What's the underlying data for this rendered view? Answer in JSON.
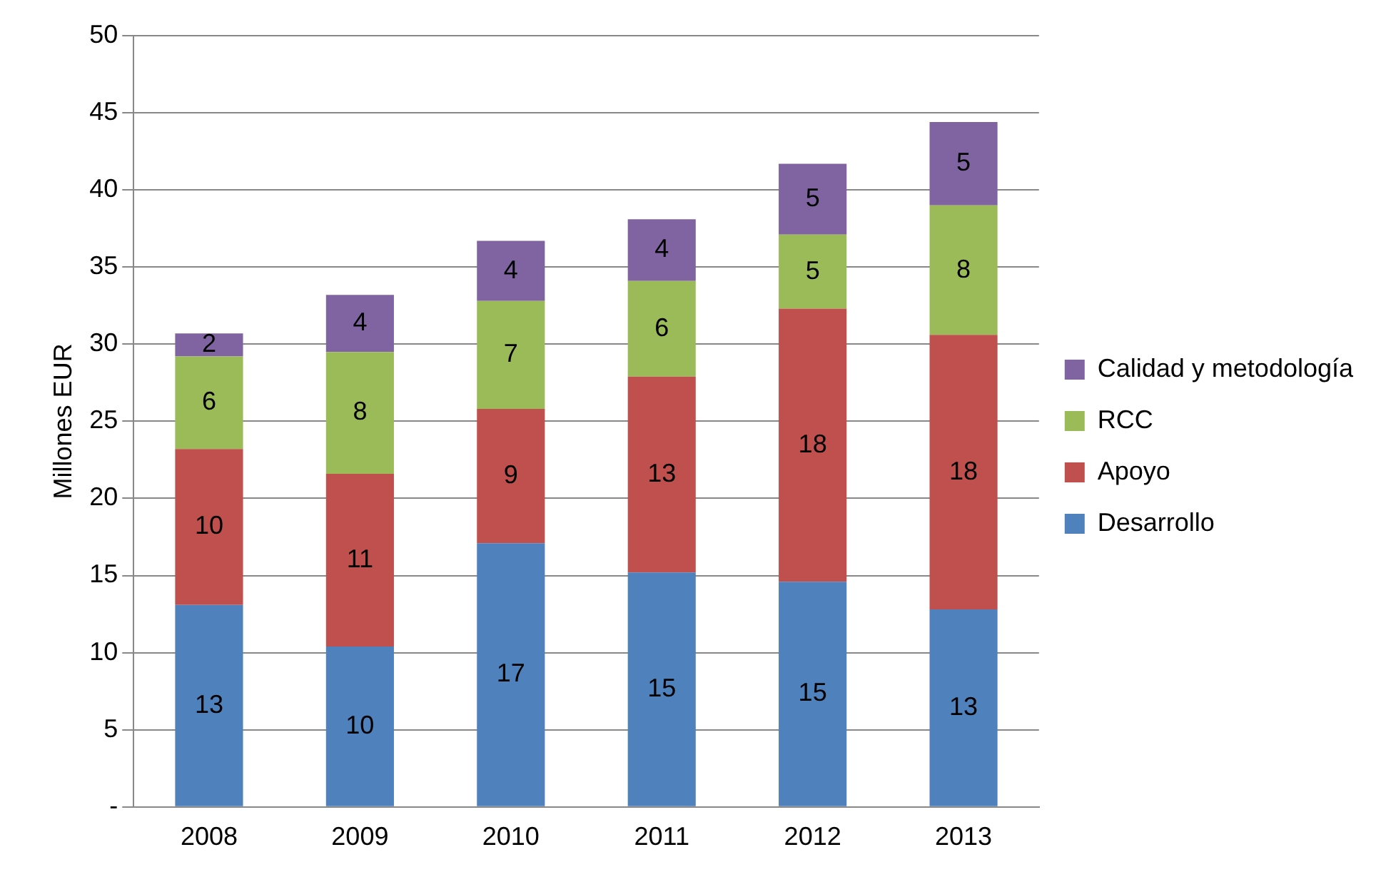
{
  "chart_data": {
    "type": "bar",
    "stacked": true,
    "ylabel": "Millones EUR",
    "categories": [
      "2008",
      "2009",
      "2010",
      "2011",
      "2012",
      "2013"
    ],
    "series": [
      {
        "name": "Desarrollo",
        "color": "#4f81bd",
        "values": [
          13.1,
          10.4,
          17.1,
          15.2,
          14.6,
          12.8
        ],
        "value_labels": [
          "13",
          "10",
          "17",
          "15",
          "15",
          "13"
        ]
      },
      {
        "name": "Apoyo",
        "color": "#c0504d",
        "values": [
          10.1,
          11.2,
          8.7,
          12.7,
          17.7,
          17.8
        ],
        "value_labels": [
          "10",
          "11",
          "9",
          "13",
          "18",
          "18"
        ]
      },
      {
        "name": "RCC",
        "color": "#9bbb59",
        "values": [
          6.0,
          7.9,
          7.0,
          6.2,
          4.8,
          8.4
        ],
        "value_labels": [
          "6",
          "8",
          "7",
          "6",
          "5",
          "8"
        ]
      },
      {
        "name": "Calidad y metodología",
        "color": "#8064a2",
        "values": [
          1.5,
          3.7,
          3.9,
          4.0,
          4.6,
          5.4
        ],
        "value_labels": [
          "2",
          "4",
          "4",
          "4",
          "5",
          "5"
        ]
      }
    ],
    "ylim": [
      0,
      50
    ],
    "yticks": [
      {
        "value": 0,
        "label": "-"
      },
      5,
      10,
      15,
      20,
      25,
      30,
      35,
      40,
      45,
      50
    ],
    "grid": "y",
    "legend": "right"
  }
}
